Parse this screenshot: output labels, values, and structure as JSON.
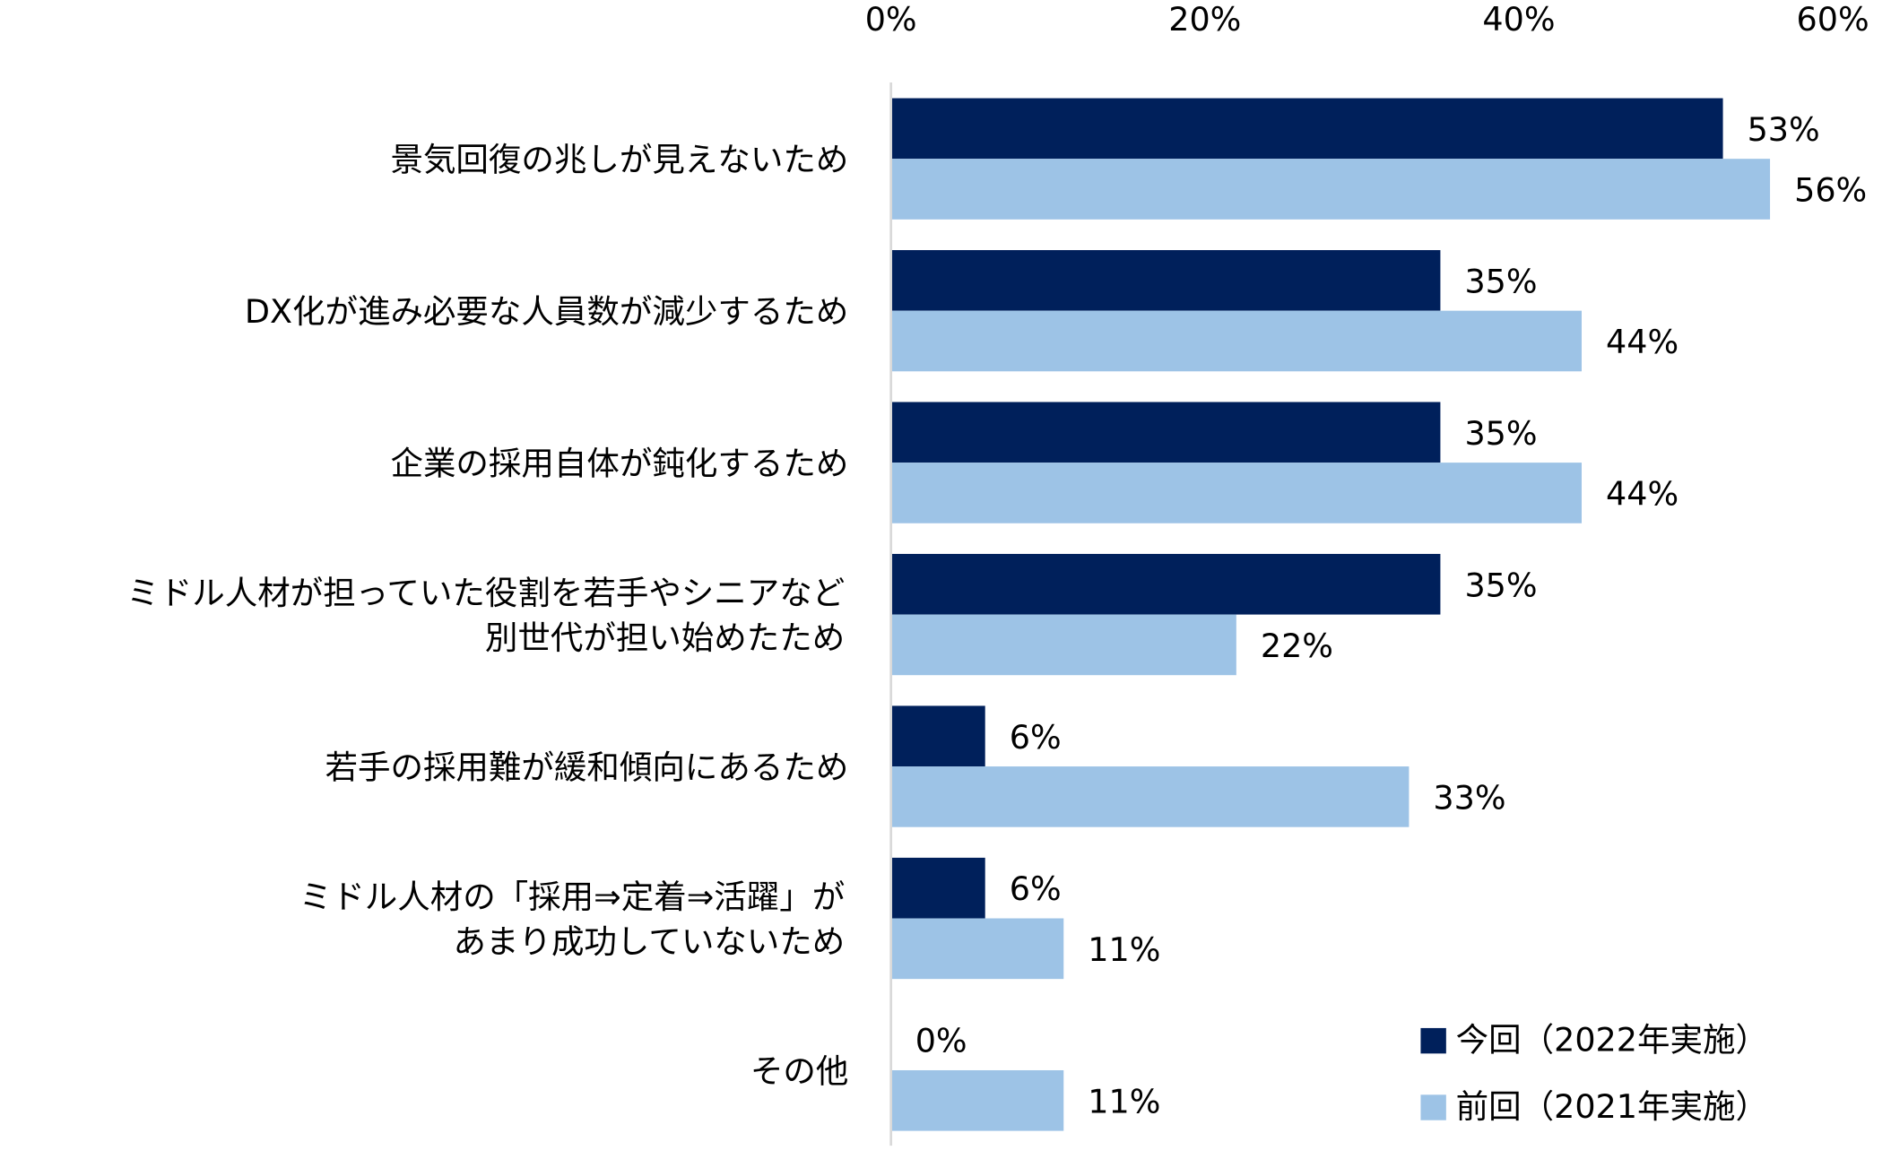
{
  "chart_data": {
    "type": "bar",
    "orientation": "horizontal",
    "categories": [
      [
        "景気回復の兆しが見えないため"
      ],
      [
        "DX化が進み必要な人員数が減少するため"
      ],
      [
        "企業の採用自体が鈍化するため"
      ],
      [
        "ミドル人材が担っていた役割を若手やシニアなど",
        "別世代が担い始めたため"
      ],
      [
        "若手の採用難が緩和傾向にあるため"
      ],
      [
        "ミドル人材の「採用⇒定着⇒活躍」が",
        "あまり成功していないため"
      ],
      [
        "その他"
      ]
    ],
    "series": [
      {
        "name": "今回（2022年実施）",
        "color": "#00205B",
        "values": [
          53,
          35,
          35,
          35,
          6,
          6,
          0
        ]
      },
      {
        "name": "前回（2021年実施）",
        "color": "#9DC3E6",
        "values": [
          56,
          44,
          44,
          22,
          33,
          11,
          11
        ]
      }
    ],
    "xlim": [
      0,
      60
    ],
    "x_ticks": [
      "0%",
      "20%",
      "40%",
      "60%"
    ],
    "x_tick_values": [
      0,
      20,
      40,
      60
    ],
    "value_suffix": "%",
    "axis_position": "top",
    "grid": false,
    "legend_position": "bottom-right"
  }
}
